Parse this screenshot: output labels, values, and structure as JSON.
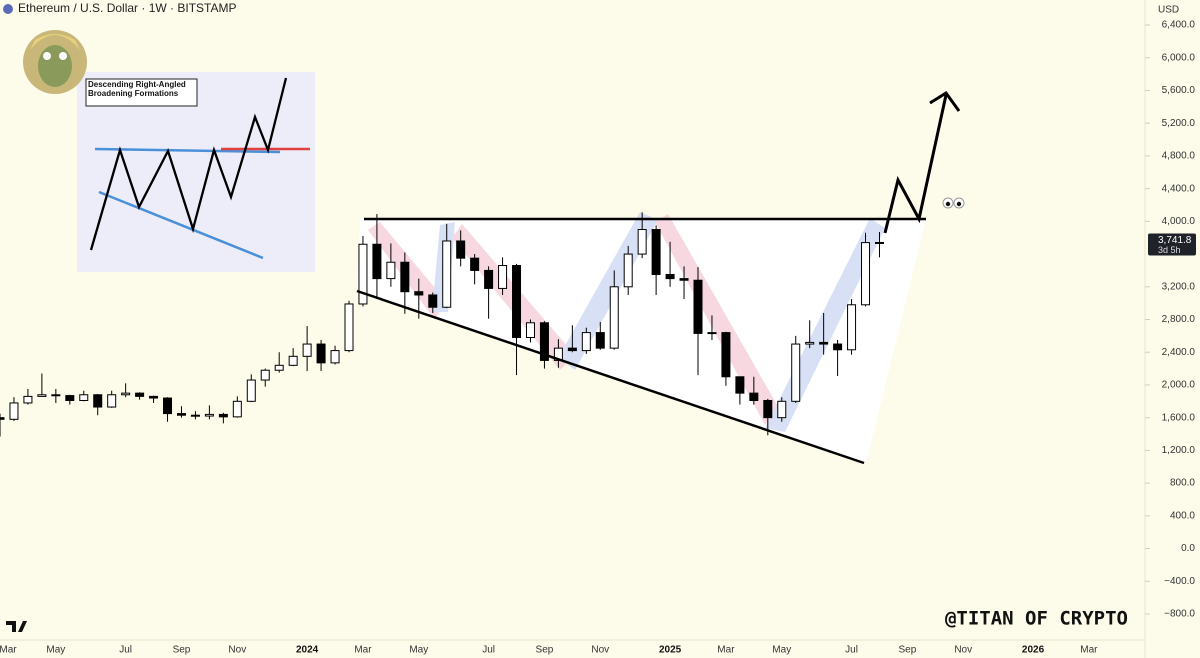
{
  "chart_data": {
    "type": "candlestick",
    "title": "Ethereum / U.S. Dollar · 1W · BITSTAMP",
    "currency": "USD",
    "watermark": "@TITAN OF CRYPTO",
    "inset_title": "Descending Right-Angled Broadening Formations",
    "price_label": "3,741.8",
    "countdown": "3d 5h",
    "categories": [
      "Mar",
      null,
      null,
      null,
      "May",
      null,
      null,
      null,
      null,
      "Jul",
      null,
      null,
      null,
      "Sep",
      null,
      null,
      null,
      "Nov",
      null,
      null,
      null,
      null,
      "2024",
      null,
      null,
      null,
      "Mar",
      null,
      null,
      null,
      "May",
      null,
      null,
      null,
      null,
      "Jul",
      null,
      null,
      null,
      "Sep",
      null,
      null,
      null,
      "Nov",
      null,
      null,
      null,
      null,
      "2025",
      null,
      null,
      null,
      "Mar",
      null,
      null,
      null,
      "May",
      null,
      null,
      null,
      null,
      "Jul",
      null,
      null,
      null,
      "Sep",
      null,
      null,
      null,
      "Nov",
      null,
      null,
      null,
      null,
      "2026",
      null,
      null,
      null,
      "Mar",
      null,
      null,
      null
    ],
    "open": [
      1600,
      1580,
      1780,
      1860,
      1880,
      1870,
      1810,
      1880,
      1730,
      1880,
      1900,
      1860,
      1840,
      1650,
      1630,
      1620,
      1640,
      1610,
      1800,
      2060,
      2180,
      2240,
      2350,
      2500,
      2270,
      2420,
      2990,
      3720,
      3300,
      3500,
      3140,
      3100,
      2950,
      3760,
      3550,
      3400,
      3180,
      3460,
      2580,
      2760,
      2300,
      2450,
      2420,
      2640,
      2450,
      3200,
      3600,
      3900,
      3350,
      3300,
      3280,
      2630,
      2640,
      2100,
      1900,
      1810,
      1600,
      1800,
      2500,
      2520,
      2500,
      2430,
      2980,
      3740,
      null,
      null,
      null,
      null,
      null,
      null,
      null,
      null,
      null,
      null,
      null,
      null,
      null,
      null,
      null,
      null,
      null,
      null
    ],
    "high": [
      1650,
      1850,
      1950,
      2140,
      1950,
      1880,
      1930,
      1890,
      1930,
      2020,
      1910,
      1870,
      1850,
      1740,
      1680,
      1750,
      1660,
      1860,
      2130,
      2200,
      2400,
      2450,
      2720,
      2550,
      2480,
      3030,
      3820,
      4090,
      3730,
      3620,
      3300,
      3130,
      3970,
      3890,
      3600,
      3450,
      3560,
      3480,
      2800,
      2780,
      2560,
      2730,
      2700,
      2770,
      3400,
      3700,
      4110,
      3950,
      3750,
      3450,
      3440,
      2850,
      2650,
      2100,
      2100,
      1830,
      1850,
      2600,
      2790,
      2880,
      2550,
      3050,
      3860,
      3870,
      null,
      null,
      null,
      null,
      null,
      null,
      null,
      null,
      null,
      null,
      null,
      null,
      null,
      null,
      null,
      null,
      null,
      null
    ],
    "low": [
      1370,
      1560,
      1760,
      1860,
      1780,
      1760,
      1800,
      1630,
      1720,
      1850,
      1820,
      1780,
      1550,
      1600,
      1580,
      1580,
      1530,
      1600,
      1790,
      1980,
      2150,
      2230,
      2170,
      2170,
      2250,
      2400,
      2960,
      3050,
      3200,
      2870,
      2810,
      2880,
      2940,
      3450,
      3230,
      2810,
      3100,
      2120,
      2520,
      2200,
      2210,
      2400,
      2380,
      2430,
      2430,
      3100,
      3550,
      3100,
      3200,
      3050,
      2120,
      2550,
      1990,
      1760,
      1760,
      1385,
      1550,
      1780,
      2450,
      2370,
      2110,
      2370,
      2960,
      3560,
      null,
      null,
      null,
      null,
      null,
      null,
      null,
      null,
      null,
      null,
      null,
      null,
      null,
      null,
      null,
      null,
      null,
      null
    ],
    "close": [
      1580,
      1780,
      1860,
      1880,
      1870,
      1810,
      1880,
      1730,
      1880,
      1900,
      1860,
      1840,
      1650,
      1630,
      1620,
      1640,
      1610,
      1800,
      2060,
      2180,
      2240,
      2350,
      2500,
      2270,
      2420,
      2990,
      3720,
      3300,
      3500,
      3140,
      3100,
      2950,
      3760,
      3550,
      3400,
      3180,
      3460,
      2580,
      2760,
      2300,
      2450,
      2420,
      2640,
      2450,
      3200,
      3600,
      3900,
      3350,
      3300,
      3280,
      2630,
      2640,
      2100,
      1900,
      1810,
      1600,
      1800,
      2500,
      2520,
      2500,
      2430,
      2980,
      3740,
      3741.8,
      null,
      null,
      null,
      null,
      null,
      null,
      null,
      null,
      null,
      null,
      null,
      null,
      null,
      null,
      null,
      null,
      null,
      null
    ],
    "up_color": "#ffffff",
    "down_color": "#000000",
    "ylim": [
      -1118,
      6706
    ],
    "yticks": [
      {
        "value": 6400,
        "label": "6,400.0"
      },
      {
        "value": 6000,
        "label": "6,000.0"
      },
      {
        "value": 5600,
        "label": "5,600.0"
      },
      {
        "value": 5200,
        "label": "5,200.0"
      },
      {
        "value": 4800,
        "label": "4,800.0"
      },
      {
        "value": 4400,
        "label": "4,400.0"
      },
      {
        "value": 4000,
        "label": "4,000.0"
      },
      {
        "value": 3200,
        "label": "3,200.0"
      },
      {
        "value": 2800,
        "label": "2,800.0"
      },
      {
        "value": 2400,
        "label": "2,400.0"
      },
      {
        "value": 2000,
        "label": "2,000.0"
      },
      {
        "value": 1600,
        "label": "1,600.0"
      },
      {
        "value": 1200,
        "label": "1,200.0"
      },
      {
        "value": 800,
        "label": "800.0"
      },
      {
        "value": 400,
        "label": "400.0"
      },
      {
        "value": 0,
        "label": "0.0"
      },
      {
        "value": -400,
        "label": "−400.0"
      },
      {
        "value": -800,
        "label": "−800.0"
      }
    ]
  }
}
